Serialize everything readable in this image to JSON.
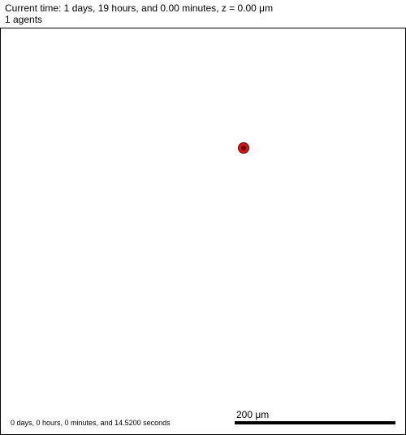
{
  "header": {
    "time_line": "Current time: 1 days, 19 hours, and 0.00 minutes, z = 0.00 μm",
    "agents_line": "1 agents"
  },
  "canvas": {
    "agent_color": "#cc1a1a",
    "scale_bar_label": "200 μm",
    "elapsed_label": "0 days, 0 hours, 0 minutes, and 14.5200 seconds"
  }
}
